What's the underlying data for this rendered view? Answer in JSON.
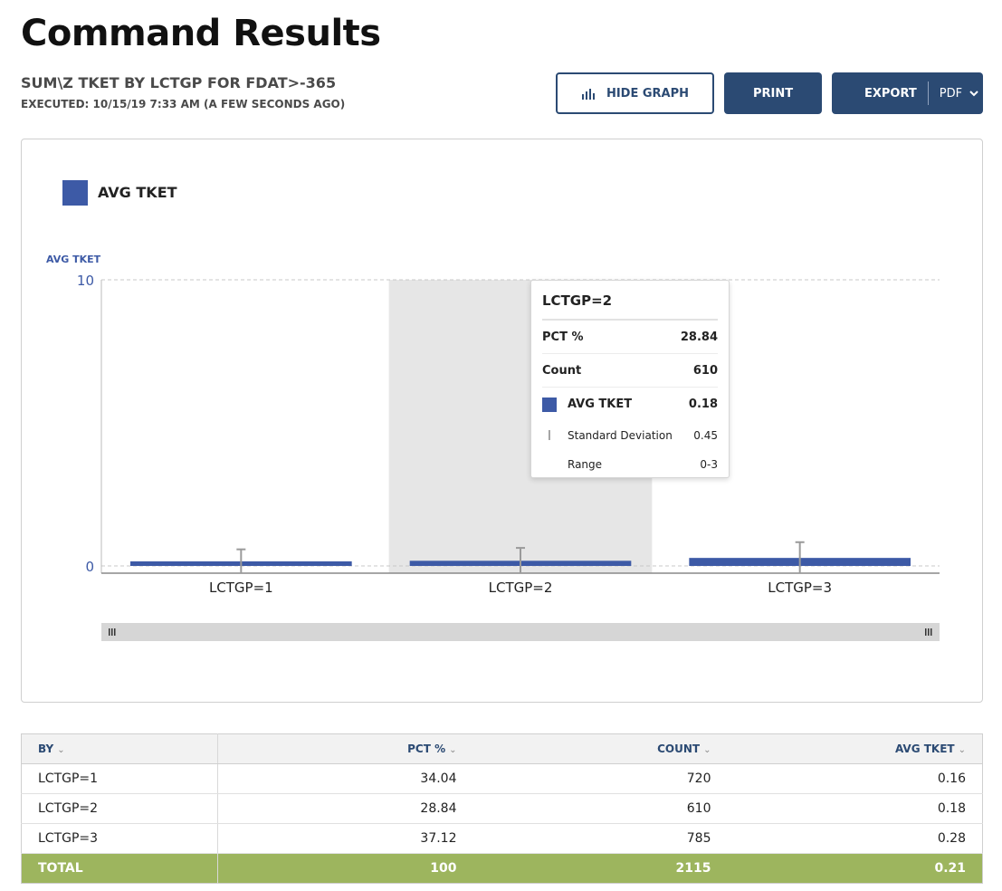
{
  "page": {
    "title": "Command Results",
    "command": "SUM\\Z TKET BY LCTGP FOR FDAT>-365",
    "executed": "EXECUTED: 10/15/19 7:33 AM (A FEW SECONDS AGO)"
  },
  "toolbar": {
    "hide_graph_label": "HIDE GRAPH",
    "print_label": "PRINT",
    "export_label": "EXPORT",
    "export_format": "PDF"
  },
  "colors": {
    "bar": "#3d5aa6",
    "primary": "#2b4a73",
    "total_row": "#9db55e"
  },
  "chart_data": {
    "type": "bar",
    "categories": [
      "LCTGP=1",
      "LCTGP=2",
      "LCTGP=3"
    ],
    "series": [
      {
        "name": "AVG TKET",
        "values": [
          0.16,
          0.18,
          0.28
        ]
      }
    ],
    "error_bars": [
      0.42,
      0.45,
      0.55
    ],
    "ylabel": "AVG TKET",
    "ylim": [
      0,
      10
    ],
    "yticks": [
      "10",
      "0"
    ],
    "legend": "top-left",
    "grid": true,
    "highlighted_category": "LCTGP=2"
  },
  "tooltip": {
    "title": "LCTGP=2",
    "pct_label": "PCT %",
    "pct_value": "28.84",
    "count_label": "Count",
    "count_value": "610",
    "avg_label": "AVG TKET",
    "avg_value": "0.18",
    "std_label": "Standard Deviation",
    "std_value": "0.45",
    "range_label": "Range",
    "range_value": "0-3"
  },
  "table": {
    "headers": {
      "by": "BY",
      "pct": "PCT %",
      "count": "COUNT",
      "avg": "AVG TKET"
    },
    "rows": [
      {
        "by": "LCTGP=1",
        "pct": "34.04",
        "count": "720",
        "avg": "0.16"
      },
      {
        "by": "LCTGP=2",
        "pct": "28.84",
        "count": "610",
        "avg": "0.18"
      },
      {
        "by": "LCTGP=3",
        "pct": "37.12",
        "count": "785",
        "avg": "0.28"
      }
    ],
    "total": {
      "by": "TOTAL",
      "pct": "100",
      "count": "2115",
      "avg": "0.21"
    }
  }
}
